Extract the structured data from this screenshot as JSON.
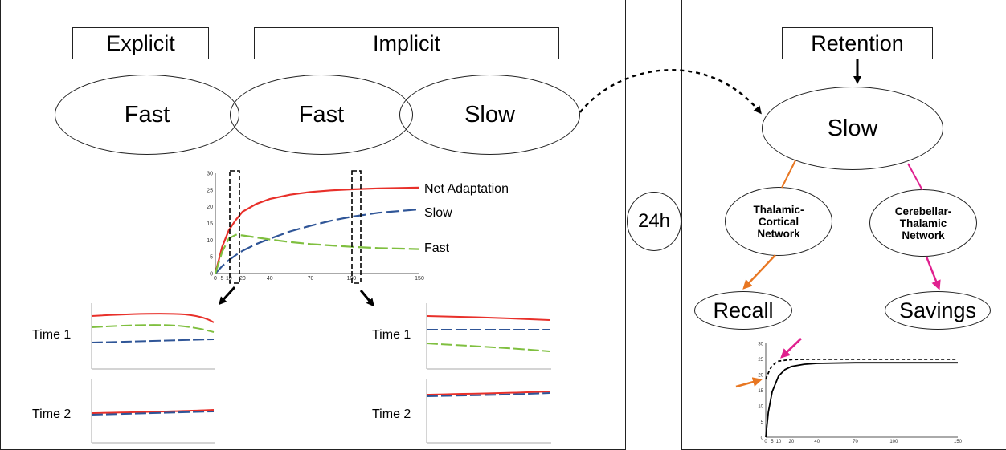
{
  "boxes": {
    "explicit": "Explicit",
    "implicit": "Implicit",
    "retention": "Retention"
  },
  "ellipses": {
    "explicit_fast": "Fast",
    "implicit_fast": "Fast",
    "implicit_slow": "Slow",
    "retention_slow": "Slow",
    "time_interval": "24h",
    "thalamic_network": "Thalamic-Cortical Network",
    "cerebellar_network": "Cerebellar-Thalamic Network",
    "recall": "Recall",
    "savings": "Savings"
  },
  "snapshots": {
    "left_time1": "Time 1",
    "left_time2": "Time 2",
    "right_time1": "Time 1",
    "right_time2": "Time 2"
  },
  "colors": {
    "net": "#e8302a",
    "slow": "#2f5597",
    "fast": "#7fbf3f",
    "orange_arrow": "#e87722",
    "magenta_arrow": "#e0208f"
  },
  "chart_data": [
    {
      "type": "line",
      "x_ticks": [
        0,
        5,
        10,
        20,
        40,
        70,
        100,
        150
      ],
      "y_ticks": [
        0,
        5,
        10,
        15,
        20,
        25,
        30
      ],
      "xlim": [
        0,
        150
      ],
      "ylim": [
        0,
        30
      ],
      "series": [
        {
          "name": "Net Adaptation",
          "x": [
            0,
            5,
            10,
            15,
            20,
            30,
            40,
            55,
            70,
            85,
            100,
            120,
            150
          ],
          "y": [
            0,
            8,
            13,
            16,
            18.5,
            20.8,
            22.3,
            23.6,
            24.4,
            24.9,
            25.2,
            25.5,
            25.7
          ]
        },
        {
          "name": "Slow",
          "x": [
            0,
            5,
            10,
            15,
            20,
            30,
            40,
            55,
            70,
            85,
            100,
            120,
            150
          ],
          "y": [
            0,
            2.2,
            4,
            5.5,
            6.8,
            8.8,
            10.4,
            12.6,
            14.3,
            15.8,
            17,
            18.2,
            19.2
          ]
        },
        {
          "name": "Fast",
          "x": [
            0,
            5,
            10,
            15,
            20,
            30,
            40,
            55,
            70,
            85,
            100,
            120,
            150
          ],
          "y": [
            0,
            6.5,
            10.5,
            11.6,
            11.4,
            10.8,
            10.2,
            9.4,
            8.8,
            8.4,
            8,
            7.6,
            7.3
          ]
        }
      ]
    },
    {
      "type": "line",
      "x_ticks": [
        0,
        5,
        10,
        20,
        40,
        70,
        100,
        150
      ],
      "y_ticks": [
        0,
        5,
        10,
        15,
        20,
        25,
        30
      ],
      "xlim": [
        0,
        150
      ],
      "ylim": [
        0,
        30
      ],
      "series": [
        {
          "x": [
            0,
            2,
            5,
            10,
            15,
            20,
            30,
            40,
            70,
            100,
            150
          ],
          "y": [
            0,
            8,
            14.5,
            19.5,
            21.6,
            22.6,
            23.3,
            23.6,
            23.8,
            23.8,
            23.8
          ]
        },
        {
          "x": [
            0,
            3,
            5,
            8,
            10,
            15,
            20,
            30,
            40,
            70,
            100,
            150
          ],
          "y": [
            18.5,
            21.5,
            22.8,
            23.9,
            24.3,
            24.6,
            24.8,
            24.9,
            24.9,
            24.9,
            24.9,
            24.9
          ]
        }
      ]
    }
  ]
}
